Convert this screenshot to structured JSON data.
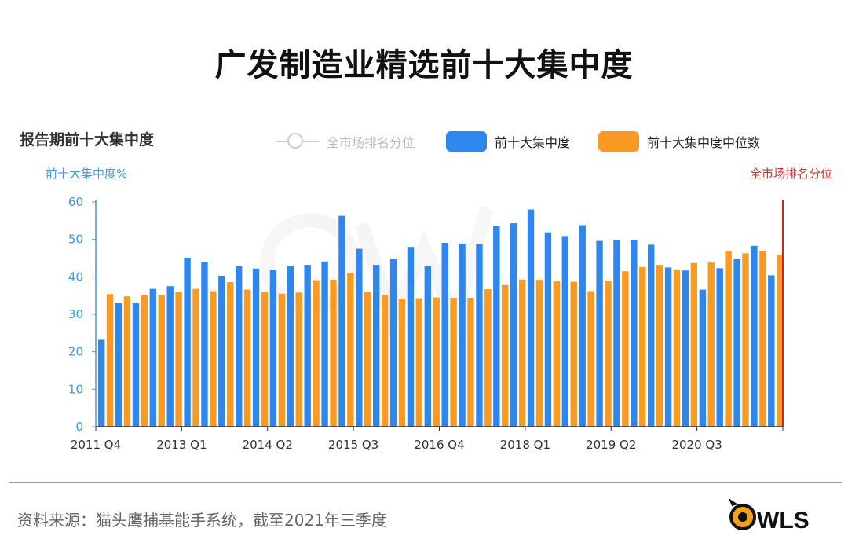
{
  "header": {
    "title": "广发制造业精选前十大集中度"
  },
  "footer": {
    "source": "资料来源：猫头鹰捕基能手系统，截至2021年三季度",
    "logo_text": "WLS"
  },
  "colors": {
    "blue": "#2e86ef",
    "orange": "#fb9a22",
    "red_line": "#c8281f",
    "axis_label_blue": "#3c9ae6"
  },
  "chart_data": {
    "type": "bar",
    "title": "报告期前十大集中度",
    "ylabel_left": "前十大集中度%",
    "ylabel_right": "全市场排名分位",
    "ylim": [
      0,
      60
    ],
    "yticks": [
      0,
      10,
      20,
      30,
      40,
      50,
      60
    ],
    "legend": [
      {
        "name": "全市场排名分位",
        "style": "line",
        "color": "#cccccc"
      },
      {
        "name": "前十大集中度",
        "style": "bar",
        "color": "#2e86ef"
      },
      {
        "name": "前十大集中度中位数",
        "style": "bar",
        "color": "#fb9a22"
      }
    ],
    "categories": [
      "2011 Q4",
      "2012 Q1",
      "2012 Q2",
      "2012 Q3",
      "2012 Q4",
      "2013 Q1",
      "2013 Q2",
      "2013 Q3",
      "2013 Q4",
      "2014 Q1",
      "2014 Q2",
      "2014 Q3",
      "2014 Q4",
      "2015 Q1",
      "2015 Q2",
      "2015 Q3",
      "2015 Q4",
      "2016 Q1",
      "2016 Q2",
      "2016 Q3",
      "2016 Q4",
      "2017 Q1",
      "2017 Q2",
      "2017 Q3",
      "2017 Q4",
      "2018 Q1",
      "2018 Q2",
      "2018 Q3",
      "2018 Q4",
      "2019 Q1",
      "2019 Q2",
      "2019 Q3",
      "2019 Q4",
      "2020 Q1",
      "2020 Q2",
      "2020 Q3",
      "2020 Q4",
      "2021 Q1",
      "2021 Q2",
      "2021 Q3"
    ],
    "xtick_labels": [
      "2011 Q4",
      "2013 Q1",
      "2014 Q2",
      "2015 Q3",
      "2016 Q4",
      "2018 Q1",
      "2019 Q2",
      "2020 Q3"
    ],
    "series": [
      {
        "name": "前十大集中度",
        "values": [
          23.2,
          33.1,
          33.0,
          36.8,
          37.5,
          45.1,
          44.0,
          40.3,
          42.8,
          42.2,
          41.9,
          42.9,
          43.2,
          44.1,
          56.3,
          47.5,
          43.2,
          44.9,
          48.0,
          42.8,
          49.1,
          48.9,
          48.7,
          53.6,
          54.3,
          58.0,
          51.9,
          50.9,
          53.8,
          49.6,
          49.9,
          49.9,
          48.6,
          42.5,
          41.7,
          36.6,
          42.3,
          44.7,
          48.3,
          40.4
        ]
      },
      {
        "name": "前十大集中度中位数",
        "values": [
          35.4,
          34.8,
          35.1,
          35.2,
          36.0,
          36.8,
          36.2,
          38.6,
          36.6,
          35.9,
          35.5,
          35.8,
          39.1,
          39.2,
          41.0,
          35.9,
          35.2,
          34.2,
          34.3,
          34.5,
          34.4,
          34.4,
          36.7,
          37.8,
          39.3,
          39.2,
          38.8,
          38.7,
          36.2,
          38.9,
          41.5,
          42.6,
          43.2,
          42.0,
          43.7,
          43.8,
          46.9,
          46.3,
          46.8,
          45.9
        ]
      }
    ]
  }
}
